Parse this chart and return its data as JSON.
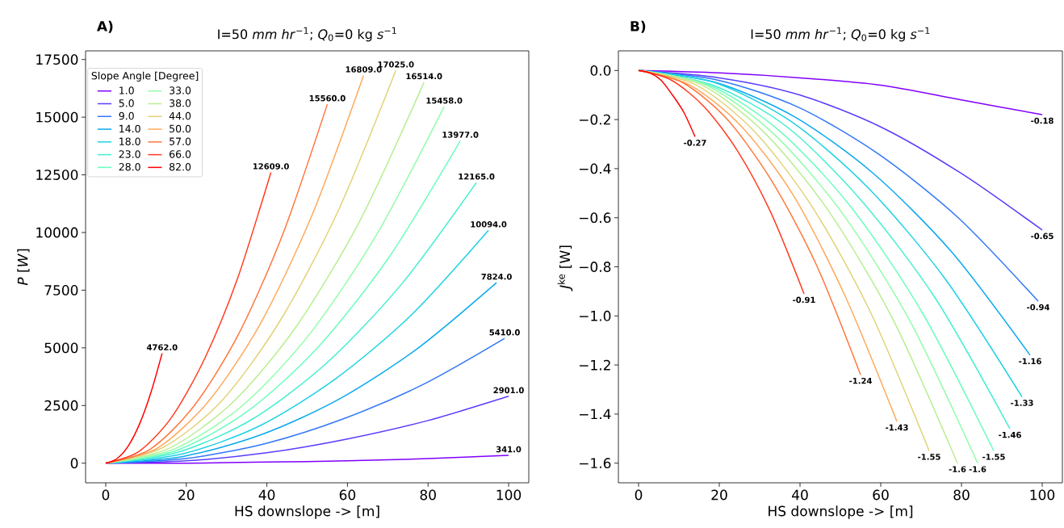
{
  "chart_data": [
    {
      "type": "line",
      "title": "I=50 *mm hr*$^{−1}$; *Q*$_{0}$=0 kg *s*$^{−1}$",
      "xlabel": "HS downslope -> [m]",
      "ylabel": "*P* [*W*]",
      "legend_title": "Slope Angle [Degree]",
      "legend": "top left",
      "annotations": [
        "A)"
      ],
      "xlim": [
        -5,
        105
      ],
      "xticks": [
        0,
        20,
        40,
        60,
        80,
        100
      ],
      "ylim": [
        -850,
        17875
      ],
      "yticks": [
        0,
        2500,
        5000,
        7500,
        10000,
        12500,
        15000,
        17500
      ],
      "series": [
        {
          "name": "1.0",
          "color": "#8000ff",
          "x": [
            0,
            20,
            40,
            60,
            80,
            100
          ],
          "values": [
            0,
            0,
            50,
            100,
            200,
            341
          ],
          "value_labels": [
            null,
            null,
            null,
            null,
            null,
            "341.0"
          ]
        },
        {
          "name": "5.0",
          "color": "#583dfd",
          "x": [
            0,
            20,
            40,
            60,
            80,
            100
          ],
          "values": [
            0,
            100,
            450,
            1050,
            1850,
            2901
          ],
          "value_labels": [
            null,
            null,
            null,
            null,
            null,
            "2901.0"
          ]
        },
        {
          "name": "9.0",
          "color": "#3177f8",
          "x": [
            0,
            19.8,
            39.6,
            59.4,
            79.2,
            99
          ],
          "values": [
            0,
            200,
            850,
            1950,
            3450,
            5410
          ],
          "value_labels": [
            null,
            null,
            null,
            null,
            null,
            "5410.0"
          ]
        },
        {
          "name": "14.0",
          "color": "#0aa9ee",
          "x": [
            0,
            19.4,
            38.8,
            58.2,
            77.6,
            97
          ],
          "values": [
            0,
            300,
            1250,
            2800,
            5000,
            7824
          ],
          "value_labels": [
            null,
            null,
            null,
            null,
            null,
            "7824.0"
          ]
        },
        {
          "name": "18.0",
          "color": "#1dd2e2",
          "x": [
            0,
            19,
            38,
            57,
            76,
            95
          ],
          "values": [
            0,
            400,
            1600,
            3650,
            6450,
            10094
          ],
          "value_labels": [
            null,
            null,
            null,
            null,
            null,
            "10094.0"
          ]
        },
        {
          "name": "23.0",
          "color": "#45eed2",
          "x": [
            0,
            18.4,
            36.8,
            55.2,
            73.6,
            92
          ],
          "values": [
            0,
            500,
            1950,
            4400,
            7800,
            12165
          ],
          "value_labels": [
            null,
            null,
            null,
            null,
            null,
            "12165.0"
          ]
        },
        {
          "name": "28.0",
          "color": "#6cfdbf",
          "x": [
            0,
            17.6,
            35.2,
            52.8,
            70.4,
            88
          ],
          "values": [
            0,
            550,
            2250,
            5050,
            8950,
            13977
          ],
          "value_labels": [
            null,
            null,
            null,
            null,
            null,
            "13977.0"
          ]
        },
        {
          "name": "33.0",
          "color": "#93fda9",
          "x": [
            0,
            16.8,
            33.6,
            50.4,
            67.2,
            84
          ],
          "values": [
            0,
            600,
            2450,
            5550,
            9900,
            15458
          ],
          "value_labels": [
            null,
            null,
            null,
            null,
            null,
            "15458.0"
          ]
        },
        {
          "name": "38.0",
          "color": "#baee91",
          "x": [
            0,
            15.8,
            31.6,
            47.4,
            63.2,
            79
          ],
          "values": [
            0,
            650,
            2650,
            5950,
            10550,
            16514
          ],
          "value_labels": [
            null,
            null,
            null,
            null,
            null,
            "16514.0"
          ]
        },
        {
          "name": "44.0",
          "color": "#e2d277",
          "x": [
            0,
            14.4,
            28.8,
            43.2,
            57.6,
            72
          ],
          "values": [
            0,
            700,
            2700,
            6150,
            10900,
            17025
          ],
          "value_labels": [
            null,
            null,
            null,
            null,
            null,
            "17025.0"
          ]
        },
        {
          "name": "50.0",
          "color": "#ffa95b",
          "x": [
            0,
            12.8,
            25.6,
            38.4,
            51.2,
            64
          ],
          "values": [
            0,
            650,
            2700,
            6050,
            10750,
            16809
          ],
          "value_labels": [
            null,
            null,
            null,
            null,
            null,
            "16809.0"
          ]
        },
        {
          "name": "57.0",
          "color": "#ff773d",
          "x": [
            0,
            11,
            22,
            33,
            44,
            55
          ],
          "values": [
            0,
            600,
            2500,
            5600,
            9950,
            15560
          ],
          "value_labels": [
            null,
            null,
            null,
            null,
            null,
            "15560.0"
          ]
        },
        {
          "name": "66.0",
          "color": "#ff3d1f",
          "x": [
            0,
            8.2,
            16.4,
            24.6,
            32.8,
            41
          ],
          "values": [
            0,
            500,
            2000,
            4550,
            8050,
            12609
          ],
          "value_labels": [
            null,
            null,
            null,
            null,
            null,
            "12609.0"
          ]
        },
        {
          "name": "82.0",
          "color": "#ff0000",
          "x": [
            0,
            2.8,
            5.6,
            8.4,
            11.2,
            14
          ],
          "values": [
            0,
            200,
            750,
            1700,
            3050,
            4762
          ],
          "value_labels": [
            null,
            null,
            null,
            null,
            null,
            "4762.0"
          ]
        }
      ]
    },
    {
      "type": "line",
      "title": "I=50 *mm hr*$^{−1}$; *Q*$_{0}$=0 kg *s*$^{−1}$",
      "xlabel": "HS downslope -> [m]",
      "ylabel": "*J*$^{ke}$ [W]",
      "annotations": [
        "B)"
      ],
      "xlim": [
        -5,
        105
      ],
      "xticks": [
        0,
        20,
        40,
        60,
        80,
        100
      ],
      "ylim": [
        -1.68,
        0.08
      ],
      "yticks": [
        {
          "value": 0,
          "label": "0.0"
        },
        {
          "value": -0.2,
          "label": "−0.2"
        },
        {
          "value": -0.4,
          "label": "−0.4"
        },
        {
          "value": -0.6,
          "label": "−0.6"
        },
        {
          "value": -0.8,
          "label": "−0.8"
        },
        {
          "value": -1.0,
          "label": "−1.0"
        },
        {
          "value": -1.2,
          "label": "−1.2"
        },
        {
          "value": -1.4,
          "label": "−1.4"
        },
        {
          "value": -1.6,
          "label": "−1.6"
        }
      ],
      "series": [
        {
          "color": "#8000ff",
          "x": [
            0,
            20,
            40,
            60,
            80,
            100
          ],
          "values": [
            0,
            -0.01,
            -0.03,
            -0.06,
            -0.12,
            -0.18
          ],
          "value_labels": [
            null,
            null,
            null,
            null,
            null,
            "-0.18"
          ]
        },
        {
          "color": "#583dfd",
          "x": [
            0,
            20,
            40,
            60,
            80,
            100
          ],
          "values": [
            0,
            -0.03,
            -0.1,
            -0.23,
            -0.42,
            -0.65
          ],
          "value_labels": [
            null,
            null,
            null,
            null,
            null,
            "-0.65"
          ]
        },
        {
          "color": "#3177f8",
          "x": [
            0,
            19.8,
            39.6,
            59.4,
            79.2,
            99
          ],
          "values": [
            0,
            -0.04,
            -0.15,
            -0.34,
            -0.6,
            -0.94
          ],
          "value_labels": [
            null,
            null,
            null,
            null,
            null,
            "-0.94"
          ]
        },
        {
          "color": "#0aa9ee",
          "x": [
            0,
            19.4,
            38.8,
            58.2,
            77.6,
            97
          ],
          "values": [
            0,
            -0.05,
            -0.19,
            -0.42,
            -0.74,
            -1.16
          ],
          "value_labels": [
            null,
            null,
            null,
            null,
            null,
            "-1.16"
          ]
        },
        {
          "color": "#1dd2e2",
          "x": [
            0,
            19,
            38,
            57,
            76,
            95
          ],
          "values": [
            0,
            -0.05,
            -0.21,
            -0.48,
            -0.85,
            -1.33
          ],
          "value_labels": [
            null,
            null,
            null,
            null,
            null,
            "-1.33"
          ]
        },
        {
          "color": "#45eed2",
          "x": [
            0,
            18.4,
            36.8,
            55.2,
            73.6,
            92
          ],
          "values": [
            0,
            -0.06,
            -0.23,
            -0.53,
            -0.93,
            -1.46
          ],
          "value_labels": [
            null,
            null,
            null,
            null,
            null,
            "-1.46"
          ]
        },
        {
          "color": "#6cfdbf",
          "x": [
            0,
            17.6,
            35.2,
            52.8,
            70.4,
            88
          ],
          "values": [
            0,
            -0.06,
            -0.25,
            -0.56,
            -0.99,
            -1.55
          ],
          "value_labels": [
            null,
            null,
            null,
            null,
            null,
            "-1.55"
          ]
        },
        {
          "color": "#93fda9",
          "x": [
            0,
            16.8,
            33.6,
            50.4,
            67.2,
            84
          ],
          "values": [
            0,
            -0.06,
            -0.26,
            -0.58,
            -1.02,
            -1.6
          ],
          "value_labels": [
            null,
            null,
            null,
            null,
            null,
            "-1.6"
          ]
        },
        {
          "color": "#baee91",
          "x": [
            0,
            15.8,
            31.6,
            47.4,
            63.2,
            79
          ],
          "values": [
            0,
            -0.06,
            -0.26,
            -0.58,
            -1.02,
            -1.6
          ],
          "value_labels": [
            null,
            null,
            null,
            null,
            null,
            "-1.6"
          ]
        },
        {
          "color": "#e2d277",
          "x": [
            0,
            14.4,
            28.8,
            43.2,
            57.6,
            72
          ],
          "values": [
            0,
            -0.06,
            -0.25,
            -0.56,
            -0.99,
            -1.55
          ],
          "value_labels": [
            null,
            null,
            null,
            null,
            null,
            "-1.55"
          ]
        },
        {
          "color": "#ffa95b",
          "x": [
            0,
            12.8,
            25.6,
            38.4,
            51.2,
            64
          ],
          "values": [
            0,
            -0.06,
            -0.23,
            -0.51,
            -0.92,
            -1.43
          ],
          "value_labels": [
            null,
            null,
            null,
            null,
            null,
            "-1.43"
          ]
        },
        {
          "color": "#ff773d",
          "x": [
            0,
            11,
            22,
            33,
            44,
            55
          ],
          "values": [
            0,
            -0.05,
            -0.2,
            -0.45,
            -0.79,
            -1.24
          ],
          "value_labels": [
            null,
            null,
            null,
            null,
            null,
            "-1.24"
          ]
        },
        {
          "color": "#ff3d1f",
          "x": [
            0,
            8.2,
            16.4,
            24.6,
            32.8,
            41
          ],
          "values": [
            0,
            -0.04,
            -0.15,
            -0.33,
            -0.58,
            -0.91
          ],
          "value_labels": [
            null,
            null,
            null,
            null,
            null,
            "-0.91"
          ]
        },
        {
          "color": "#ff0000",
          "x": [
            0,
            2.8,
            5.6,
            8.4,
            11.2,
            14
          ],
          "values": [
            0,
            -0.01,
            -0.04,
            -0.1,
            -0.17,
            -0.27
          ],
          "value_labels": [
            null,
            null,
            null,
            null,
            null,
            "-0.27"
          ]
        }
      ]
    }
  ]
}
